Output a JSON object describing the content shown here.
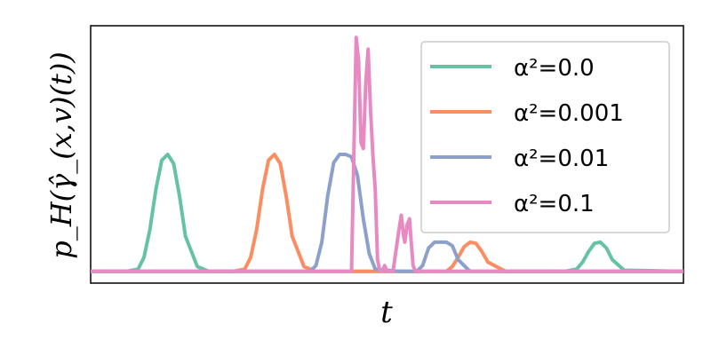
{
  "chart_data": {
    "type": "line",
    "title": "",
    "xlabel": "t",
    "ylabel": "p_H(γ̂_(x,v)(t))",
    "xticks": "none",
    "yticks": "none",
    "grid": false,
    "legend_position": "top-right",
    "xlim": [
      0,
      1
    ],
    "ylim": [
      -0.1,
      2.1
    ],
    "series": [
      {
        "name": "α²=0.0",
        "color": "#66c2a5",
        "x": [
          0.0,
          0.06,
          0.08,
          0.09,
          0.1,
          0.11,
          0.12,
          0.13,
          0.14,
          0.15,
          0.16,
          0.18,
          0.2,
          0.3,
          0.8,
          0.82,
          0.83,
          0.84,
          0.85,
          0.86,
          0.87,
          0.88,
          0.9,
          1.0
        ],
        "y": [
          0.0,
          0.0,
          0.02,
          0.12,
          0.36,
          0.7,
          0.95,
          1.0,
          0.92,
          0.64,
          0.3,
          0.04,
          0.0,
          0.0,
          0.0,
          0.02,
          0.08,
          0.17,
          0.24,
          0.25,
          0.2,
          0.1,
          0.01,
          0.0
        ]
      },
      {
        "name": "α²=0.001",
        "color": "#fc8d62",
        "x": [
          0.0,
          0.24,
          0.26,
          0.27,
          0.28,
          0.29,
          0.3,
          0.31,
          0.32,
          0.33,
          0.34,
          0.36,
          0.38,
          0.55,
          0.6,
          0.61,
          0.62,
          0.63,
          0.64,
          0.65,
          0.66,
          0.67,
          0.7,
          1.0
        ],
        "y": [
          0.0,
          0.0,
          0.02,
          0.12,
          0.36,
          0.7,
          0.95,
          1.0,
          0.92,
          0.64,
          0.3,
          0.04,
          0.0,
          0.0,
          0.0,
          0.04,
          0.12,
          0.21,
          0.25,
          0.24,
          0.17,
          0.08,
          0.0,
          0.0
        ]
      },
      {
        "name": "α²=0.01",
        "color": "#8da0cb",
        "x": [
          0.0,
          0.37,
          0.38,
          0.39,
          0.4,
          0.41,
          0.42,
          0.43,
          0.44,
          0.45,
          0.46,
          0.47,
          0.48,
          0.52,
          0.55,
          0.56,
          0.57,
          0.58,
          0.59,
          0.6,
          0.61,
          0.62,
          0.64,
          1.0
        ],
        "y": [
          0.0,
          0.0,
          0.05,
          0.25,
          0.65,
          0.93,
          1.0,
          1.0,
          0.98,
          0.82,
          0.45,
          0.15,
          0.02,
          0.0,
          0.0,
          0.05,
          0.2,
          0.25,
          0.25,
          0.25,
          0.22,
          0.1,
          0.0,
          0.0
        ]
      },
      {
        "name": "α²=0.1",
        "color": "#e78ac3",
        "x": [
          0.0,
          0.44,
          0.448,
          0.452,
          0.456,
          0.46,
          0.464,
          0.468,
          0.472,
          0.476,
          0.48,
          0.484,
          0.488,
          0.492,
          0.496,
          0.5,
          0.51,
          0.52,
          0.524,
          0.528,
          0.53,
          0.534,
          0.538,
          0.54,
          0.544,
          0.548,
          0.552,
          0.556,
          0.56,
          0.57,
          1.0
        ],
        "y": [
          0.0,
          0.0,
          2.0,
          1.8,
          1.1,
          1.05,
          1.6,
          1.9,
          1.4,
          1.0,
          0.7,
          0.1,
          0.0,
          0.0,
          0.05,
          0.0,
          0.0,
          0.35,
          0.48,
          0.3,
          0.25,
          0.4,
          0.45,
          0.3,
          0.05,
          0.0,
          0.0,
          0.0,
          0.0,
          0.0,
          0.0
        ]
      }
    ]
  }
}
